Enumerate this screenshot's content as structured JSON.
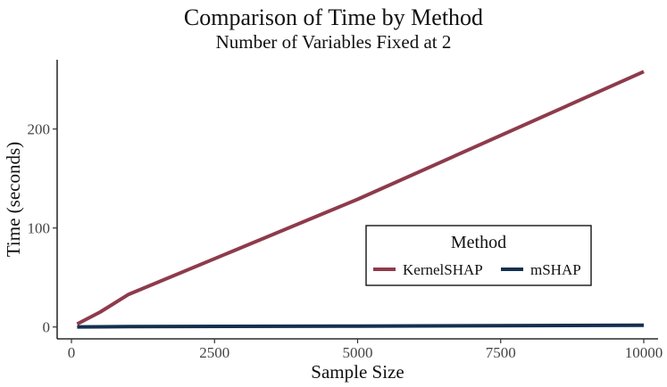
{
  "chart_data": {
    "type": "line",
    "title": "Comparison of Time by Method",
    "subtitle": "Number of Variables Fixed at 2",
    "xlabel": "Sample Size",
    "ylabel": "Time (seconds)",
    "xlim": [
      -250,
      10250
    ],
    "ylim": [
      -12,
      270
    ],
    "x_ticks": [
      0,
      2500,
      5000,
      7500,
      10000
    ],
    "x_tick_labels": [
      "0",
      "2500",
      "5000",
      "7500",
      "10000"
    ],
    "y_ticks": [
      0,
      100,
      200
    ],
    "y_tick_labels": [
      "0",
      "100",
      "200"
    ],
    "grid": false,
    "legend": {
      "title": "Method",
      "position": "center-right, inside plot, horizontal"
    },
    "series": [
      {
        "name": "KernelSHAP",
        "color": "#8E3B4C",
        "x": [
          100,
          500,
          1000,
          5000,
          10000
        ],
        "y": [
          3,
          15,
          33,
          129,
          258
        ]
      },
      {
        "name": "mSHAP",
        "color": "#14304F",
        "x": [
          100,
          500,
          1000,
          5000,
          10000
        ],
        "y": [
          0.1,
          0.2,
          0.3,
          0.9,
          1.8
        ]
      }
    ]
  }
}
